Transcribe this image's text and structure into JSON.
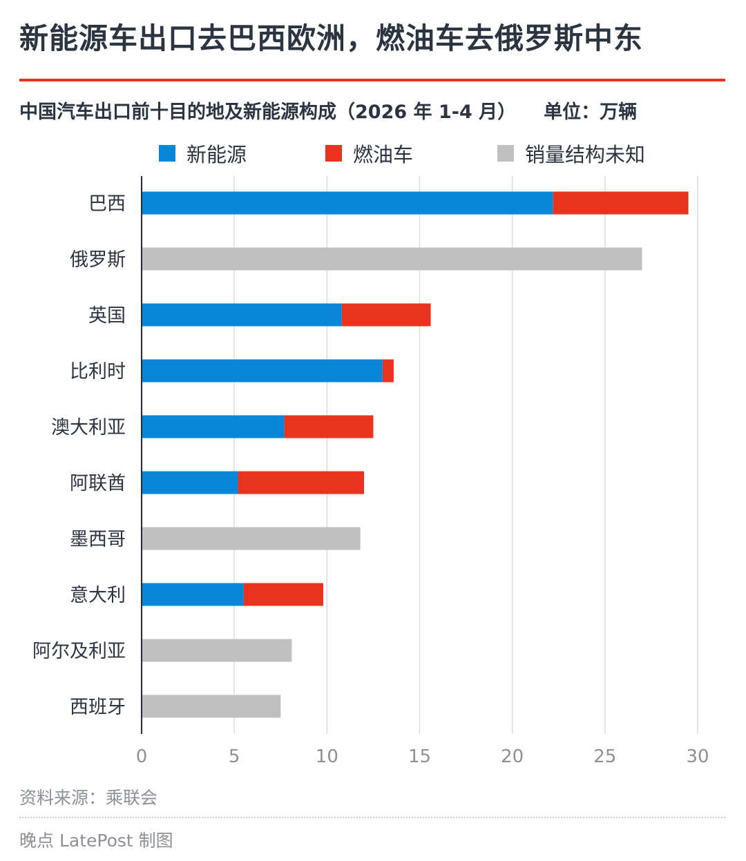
{
  "header": {
    "headline": "新能源车出口去巴西欧洲，燃油车去俄罗斯中东"
  },
  "chart_data": {
    "type": "bar",
    "orientation": "horizontal",
    "stacked": true,
    "title": "中国汽车出口前十目的地及新能源构成（2026 年 1-4 月）",
    "unit": "单位：万辆",
    "categories": [
      "巴西",
      "俄罗斯",
      "英国",
      "比利时",
      "澳大利亚",
      "阿联酋",
      "墨西哥",
      "意大利",
      "阿尔及利亚",
      "西班牙"
    ],
    "series": [
      {
        "name": "新能源",
        "color": "#0a86d8",
        "values": [
          22.2,
          null,
          10.8,
          13.0,
          7.7,
          5.2,
          null,
          5.5,
          null,
          null
        ]
      },
      {
        "name": "燃油车",
        "color": "#e8331f",
        "values": [
          7.3,
          null,
          4.8,
          0.6,
          4.8,
          6.8,
          null,
          4.3,
          null,
          null
        ]
      },
      {
        "name": "销量结构未知",
        "color": "#c0c0c0",
        "values": [
          null,
          27.0,
          null,
          null,
          null,
          null,
          11.8,
          null,
          8.1,
          7.5
        ]
      }
    ],
    "x_ticks": [
      "0",
      "5",
      "10",
      "15",
      "20",
      "25",
      "30"
    ],
    "xlim": [
      0,
      30
    ],
    "grid": "vertical",
    "legend_position": "top"
  },
  "footer": {
    "source": "资料来源：乘联会",
    "credit": "晚点 LatePost 制图"
  }
}
